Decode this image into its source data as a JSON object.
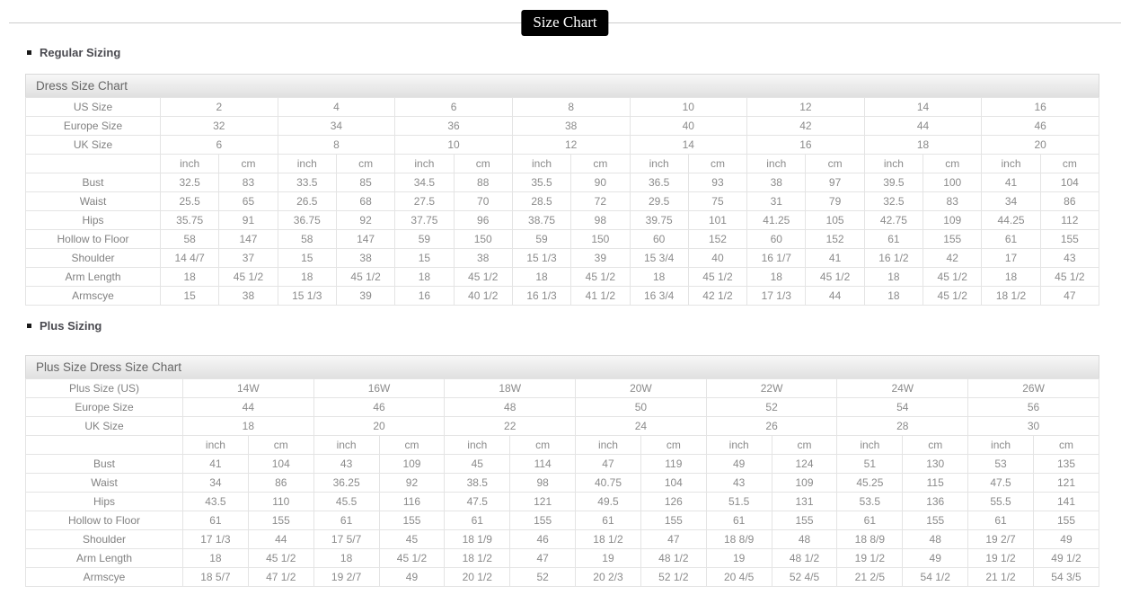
{
  "page": {
    "title_badge": "Size Chart"
  },
  "colors": {
    "badge_bg": "#000000",
    "badge_text": "#ffffff",
    "table_header_bg_top": "#f7f7f7",
    "table_header_bg_bottom": "#e0e0e0",
    "table_border": "#e4e4e4",
    "cell_text": "#8b8b8b",
    "heading_text": "#4a4a50"
  },
  "sections": [
    {
      "heading": "Regular Sizing"
    },
    {
      "heading": "Plus Sizing"
    }
  ],
  "regular_table": {
    "title": "Dress Size Chart",
    "size_rows": [
      {
        "label": "US Size",
        "values": [
          "2",
          "4",
          "6",
          "8",
          "10",
          "12",
          "14",
          "16"
        ]
      },
      {
        "label": "Europe Size",
        "values": [
          "32",
          "34",
          "36",
          "38",
          "40",
          "42",
          "44",
          "46"
        ]
      },
      {
        "label": "UK Size",
        "values": [
          "6",
          "8",
          "10",
          "12",
          "14",
          "16",
          "18",
          "20"
        ]
      }
    ],
    "unit_headers": [
      "inch",
      "cm"
    ],
    "measurement_rows": [
      {
        "label": "Bust",
        "values": [
          "32.5",
          "83",
          "33.5",
          "85",
          "34.5",
          "88",
          "35.5",
          "90",
          "36.5",
          "93",
          "38",
          "97",
          "39.5",
          "100",
          "41",
          "104"
        ]
      },
      {
        "label": "Waist",
        "values": [
          "25.5",
          "65",
          "26.5",
          "68",
          "27.5",
          "70",
          "28.5",
          "72",
          "29.5",
          "75",
          "31",
          "79",
          "32.5",
          "83",
          "34",
          "86"
        ]
      },
      {
        "label": "Hips",
        "values": [
          "35.75",
          "91",
          "36.75",
          "92",
          "37.75",
          "96",
          "38.75",
          "98",
          "39.75",
          "101",
          "41.25",
          "105",
          "42.75",
          "109",
          "44.25",
          "112"
        ]
      },
      {
        "label": "Hollow to Floor",
        "values": [
          "58",
          "147",
          "58",
          "147",
          "59",
          "150",
          "59",
          "150",
          "60",
          "152",
          "60",
          "152",
          "61",
          "155",
          "61",
          "155"
        ]
      },
      {
        "label": "Shoulder",
        "values": [
          "14 4/7",
          "37",
          "15",
          "38",
          "15",
          "38",
          "15 1/3",
          "39",
          "15 3/4",
          "40",
          "16 1/7",
          "41",
          "16 1/2",
          "42",
          "17",
          "43"
        ]
      },
      {
        "label": "Arm Length",
        "values": [
          "18",
          "45 1/2",
          "18",
          "45 1/2",
          "18",
          "45 1/2",
          "18",
          "45 1/2",
          "18",
          "45 1/2",
          "18",
          "45 1/2",
          "18",
          "45 1/2",
          "18",
          "45 1/2"
        ]
      },
      {
        "label": "Armscye",
        "values": [
          "15",
          "38",
          "15 1/3",
          "39",
          "16",
          "40 1/2",
          "16 1/3",
          "41 1/2",
          "16 3/4",
          "42 1/2",
          "17 1/3",
          "44",
          "18",
          "45 1/2",
          "18 1/2",
          "47"
        ]
      }
    ]
  },
  "plus_table": {
    "title": "Plus Size Dress Size Chart",
    "size_rows": [
      {
        "label": "Plus Size (US)",
        "values": [
          "14W",
          "16W",
          "18W",
          "20W",
          "22W",
          "24W",
          "26W"
        ]
      },
      {
        "label": "Europe Size",
        "values": [
          "44",
          "46",
          "48",
          "50",
          "52",
          "54",
          "56"
        ]
      },
      {
        "label": "UK Size",
        "values": [
          "18",
          "20",
          "22",
          "24",
          "26",
          "28",
          "30"
        ]
      }
    ],
    "unit_headers": [
      "inch",
      "cm"
    ],
    "measurement_rows": [
      {
        "label": "Bust",
        "values": [
          "41",
          "104",
          "43",
          "109",
          "45",
          "114",
          "47",
          "119",
          "49",
          "124",
          "51",
          "130",
          "53",
          "135"
        ]
      },
      {
        "label": "Waist",
        "values": [
          "34",
          "86",
          "36.25",
          "92",
          "38.5",
          "98",
          "40.75",
          "104",
          "43",
          "109",
          "45.25",
          "115",
          "47.5",
          "121"
        ]
      },
      {
        "label": "Hips",
        "values": [
          "43.5",
          "110",
          "45.5",
          "116",
          "47.5",
          "121",
          "49.5",
          "126",
          "51.5",
          "131",
          "53.5",
          "136",
          "55.5",
          "141"
        ]
      },
      {
        "label": "Hollow to Floor",
        "values": [
          "61",
          "155",
          "61",
          "155",
          "61",
          "155",
          "61",
          "155",
          "61",
          "155",
          "61",
          "155",
          "61",
          "155"
        ]
      },
      {
        "label": "Shoulder",
        "values": [
          "17 1/3",
          "44",
          "17 5/7",
          "45",
          "18 1/9",
          "46",
          "18 1/2",
          "47",
          "18 8/9",
          "48",
          "18 8/9",
          "48",
          "19 2/7",
          "49"
        ]
      },
      {
        "label": "Arm Length",
        "values": [
          "18",
          "45 1/2",
          "18",
          "45 1/2",
          "18 1/2",
          "47",
          "19",
          "48 1/2",
          "19",
          "48 1/2",
          "19 1/2",
          "49",
          "19 1/2",
          "49 1/2"
        ]
      },
      {
        "label": "Armscye",
        "values": [
          "18 5/7",
          "47 1/2",
          "19 2/7",
          "49",
          "20 1/2",
          "52",
          "20 2/3",
          "52 1/2",
          "20 4/5",
          "52 4/5",
          "21 2/5",
          "54 1/2",
          "21 1/2",
          "54 3/5"
        ]
      }
    ]
  }
}
